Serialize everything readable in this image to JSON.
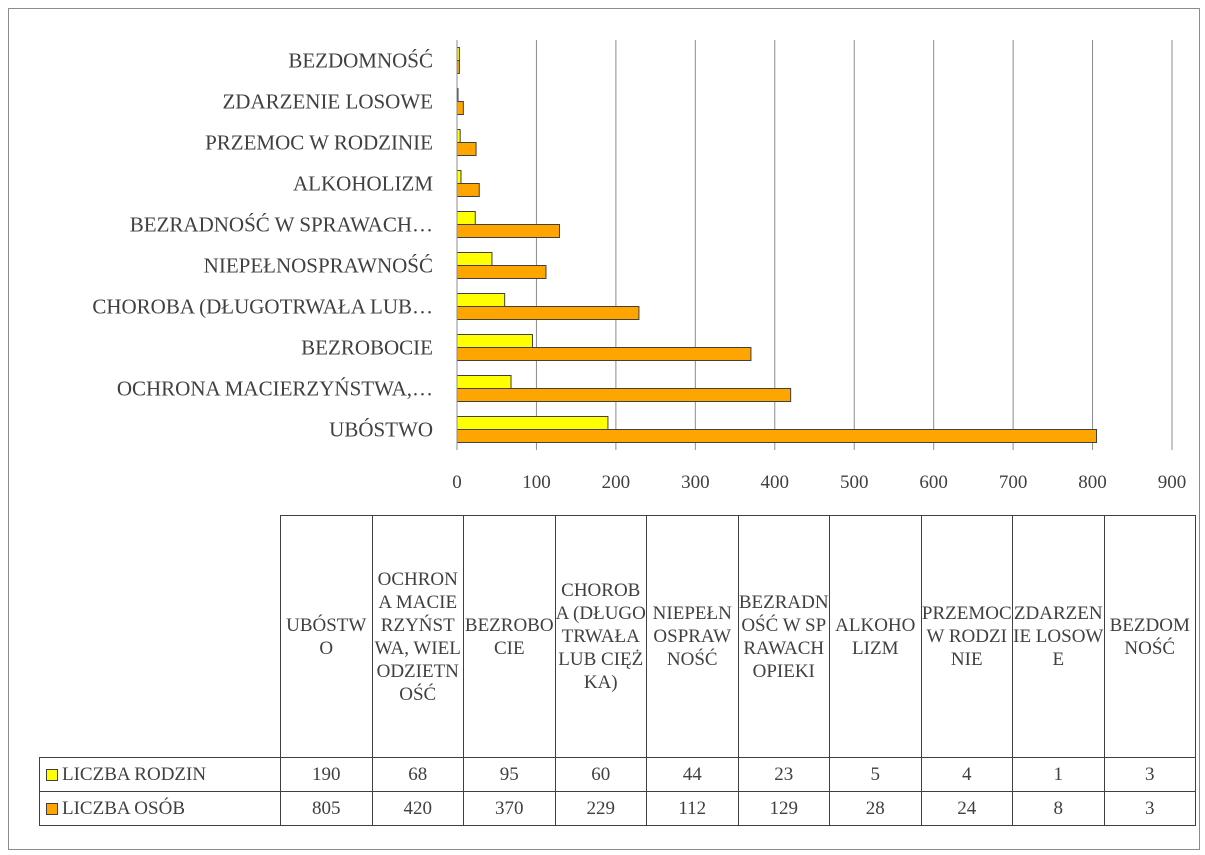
{
  "chart_data": {
    "type": "bar",
    "orientation": "horizontal",
    "categories_full": [
      "UBÓSTWO",
      "OCHRONA MACIERZYŃSTWA, WIELODZIETNOŚĆ",
      "BEZROBOCIE",
      "CHOROBA (DŁUGOTRWAŁA LUB CIĘŻKA)",
      "NIEPEŁNOSPRAWNOŚĆ",
      "BEZRADNOŚĆ W SPRAWACH OPIEKI",
      "ALKOHOLIZM",
      "PRZEMOC W RODZINIE",
      "ZDARZENIE LOSOWE",
      "BEZDOMNOŚĆ"
    ],
    "axis_labels": [
      "UBÓSTWO",
      "OCHRONA MACIERZYŃSTWA,…",
      "BEZROBOCIE",
      "CHOROBA (DŁUGOTRWAŁA LUB…",
      "NIEPEŁNOSPRAWNOŚĆ",
      "BEZRADNOŚĆ W SPRAWACH…",
      "ALKOHOLIZM",
      "PRZEMOC W RODZINIE",
      "ZDARZENIE LOSOWE",
      "BEZDOMNOŚĆ"
    ],
    "series": [
      {
        "name": "LICZBA RODZIN",
        "color": "#ffff00",
        "values": [
          190,
          68,
          95,
          60,
          44,
          23,
          5,
          4,
          1,
          3
        ]
      },
      {
        "name": "LICZBA OSÓB",
        "color": "#ffa500",
        "values": [
          805,
          420,
          370,
          229,
          112,
          129,
          28,
          24,
          8,
          3
        ]
      }
    ],
    "xlim": [
      0,
      900
    ],
    "x_ticks": [
      0,
      100,
      200,
      300,
      400,
      500,
      600,
      700,
      800,
      900
    ],
    "grid": "vertical",
    "legend": "data-table-below"
  }
}
